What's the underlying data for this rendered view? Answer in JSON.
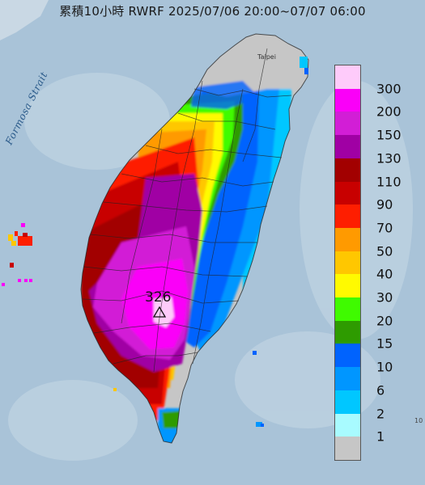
{
  "title": "累積10小時 RWRF 2025/07/06 20:00~07/07 06:00",
  "strait_label": "Formosa Strait",
  "city_label": "Taipei",
  "max_value_label": "326",
  "edge_label": "10",
  "legend": {
    "labels": [
      "300",
      "200",
      "150",
      "130",
      "110",
      "90",
      "70",
      "50",
      "40",
      "30",
      "20",
      "15",
      "10",
      "6",
      "2",
      "1"
    ],
    "colors": [
      "#fecbfa",
      "#fa00f8",
      "#d21ed6",
      "#a000a4",
      "#a20000",
      "#c80000",
      "#fe1e00",
      "#ff9a00",
      "#ffc700",
      "#fffa00",
      "#3ffb00",
      "#2e9b00",
      "#0063fe",
      "#0096ff",
      "#00c7ff",
      "#a8fbff",
      "#c6c6c6"
    ]
  },
  "colors": {
    "sea": "#a9c3d8",
    "land_none": "#c6c6c6"
  }
}
